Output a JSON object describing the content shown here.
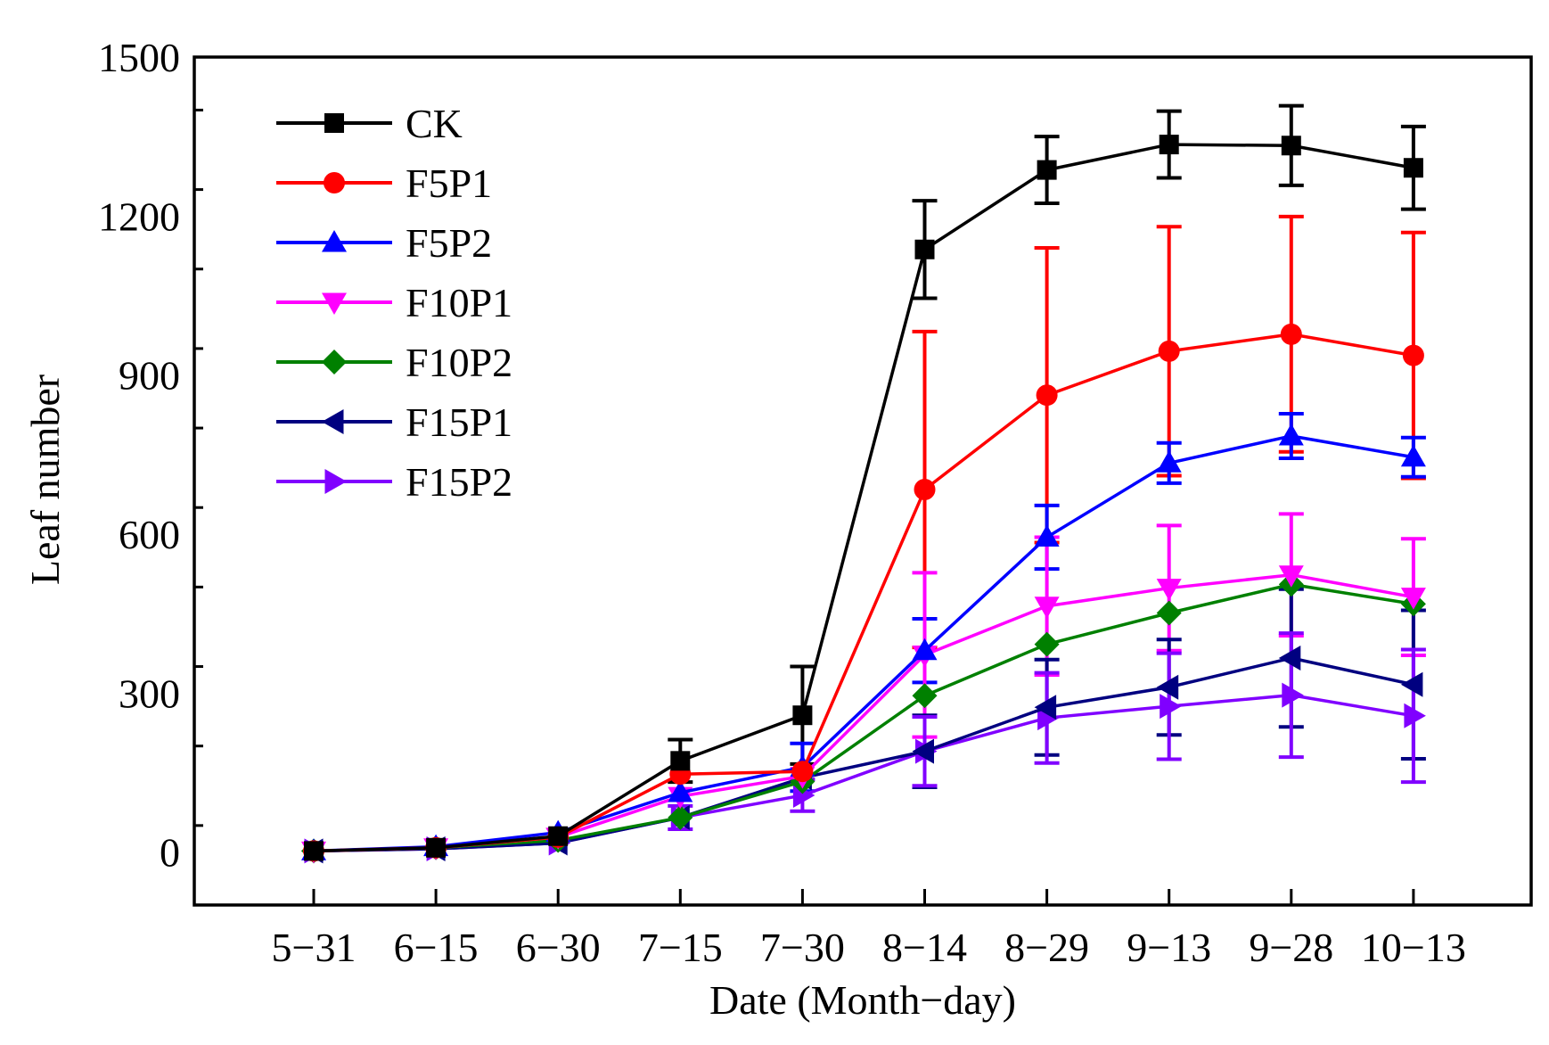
{
  "chart_data": {
    "type": "line",
    "title": "",
    "xlabel": "Date (Month−day)",
    "ylabel": "Leaf number",
    "categories": [
      "5−31",
      "6−15",
      "6−30",
      "7−15",
      "7−30",
      "8−14",
      "8−29",
      "9−13",
      "9−28",
      "10−13"
    ],
    "ylim": [
      -100,
      1500
    ],
    "yticks": [
      0,
      300,
      600,
      900,
      1200,
      1500
    ],
    "grid": false,
    "legend_position": "top-left",
    "series": [
      {
        "name": "CK",
        "color": "#000000",
        "marker": "square",
        "values": [
          2,
          8,
          30,
          172,
          258,
          1137,
          1287,
          1335,
          1333,
          1291
        ],
        "errors": [
          0,
          0,
          0,
          40,
          92,
          92,
          63,
          63,
          75,
          78
        ]
      },
      {
        "name": "F5P1",
        "color": "#ff0000",
        "marker": "circle",
        "values": [
          2,
          8,
          28,
          147,
          152,
          684,
          862,
          945,
          977,
          937
        ],
        "errors": [
          0,
          0,
          0,
          0,
          0,
          298,
          278,
          235,
          222,
          232
        ]
      },
      {
        "name": "F5P2",
        "color": "#0000ff",
        "marker": "triangle-up",
        "values": [
          2,
          10,
          37,
          112,
          160,
          380,
          594,
          734,
          785,
          745
        ],
        "errors": [
          0,
          0,
          0,
          0,
          45,
          60,
          60,
          38,
          42,
          37
        ]
      },
      {
        "name": "F10P1",
        "color": "#ff00ff",
        "marker": "triangle-down",
        "values": [
          2,
          8,
          28,
          105,
          143,
          372,
          464,
          498,
          523,
          481
        ],
        "errors": [
          0,
          0,
          0,
          0,
          0,
          155,
          130,
          118,
          115,
          110
        ]
      },
      {
        "name": "F10P2",
        "color": "#008000",
        "marker": "diamond",
        "values": [
          2,
          8,
          22,
          65,
          133,
          295,
          392,
          451,
          505,
          468
        ],
        "errors": [
          0,
          0,
          0,
          0,
          0,
          0,
          0,
          0,
          0,
          0
        ]
      },
      {
        "name": "F15P1",
        "color": "#000080",
        "marker": "triangle-left",
        "values": [
          2,
          6,
          17,
          65,
          140,
          190,
          273,
          311,
          366,
          316
        ],
        "errors": [
          0,
          0,
          0,
          0,
          0,
          68,
          90,
          90,
          130,
          140
        ]
      },
      {
        "name": "F15P2",
        "color": "#8000ff",
        "marker": "triangle-right",
        "values": [
          2,
          6,
          17,
          65,
          107,
          190,
          253,
          275,
          296,
          257
        ],
        "errors": [
          0,
          0,
          0,
          22,
          30,
          65,
          85,
          100,
          117,
          125
        ]
      }
    ]
  }
}
